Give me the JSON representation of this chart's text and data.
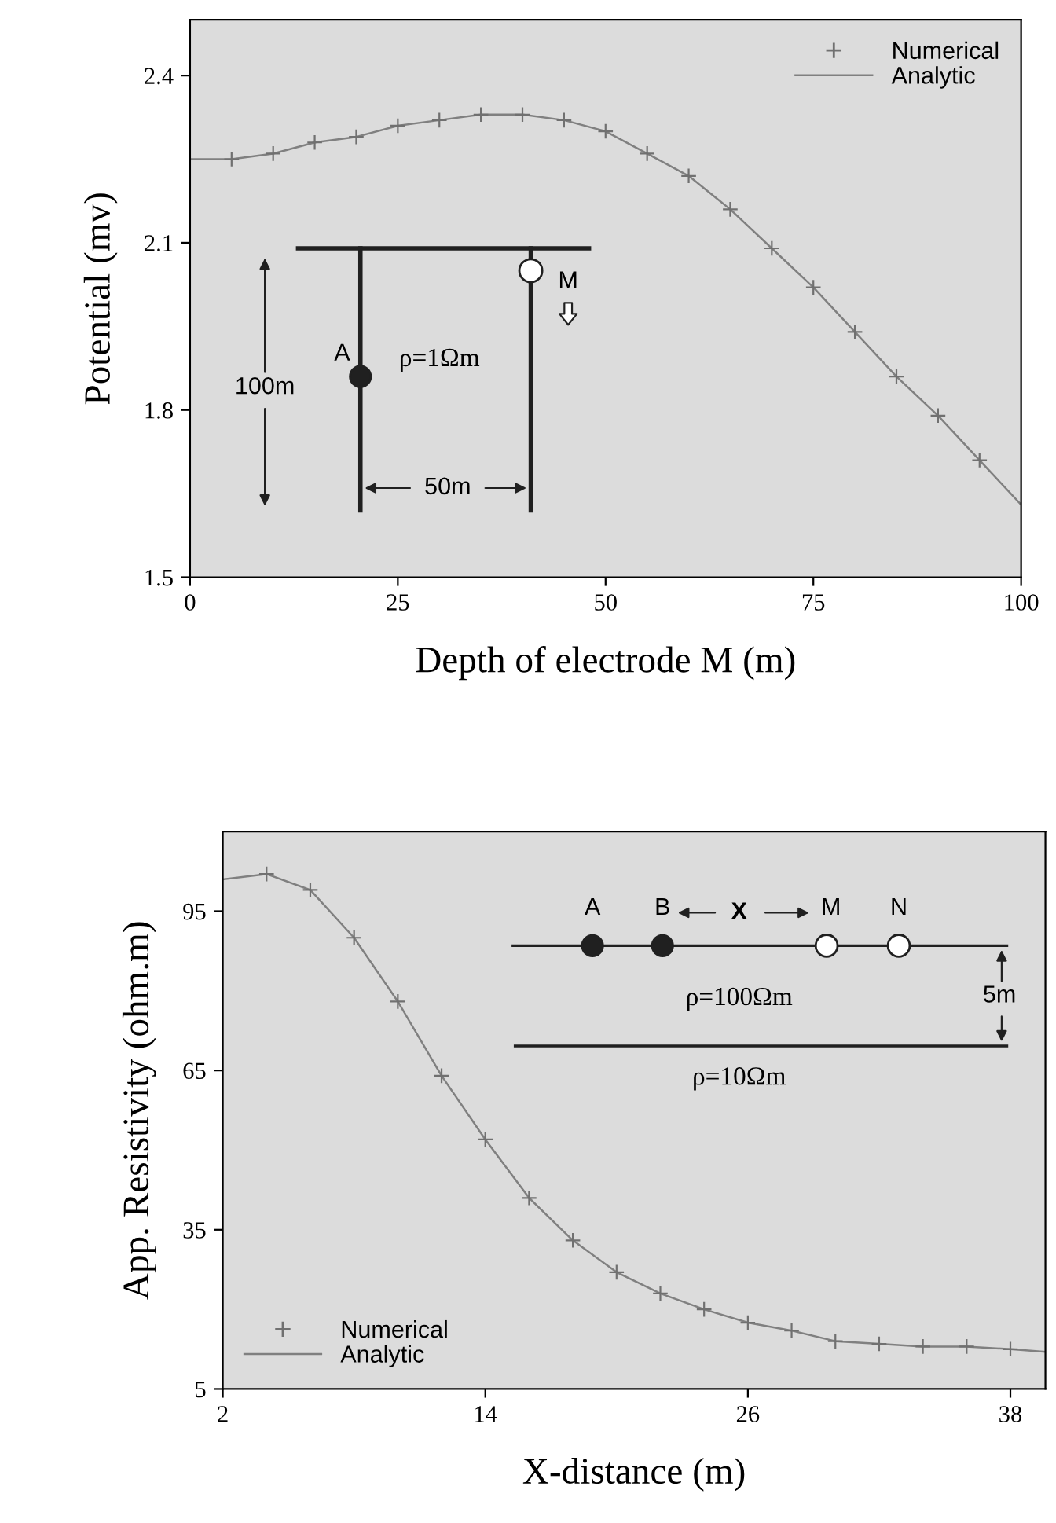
{
  "chart_data": [
    {
      "type": "line",
      "xlabel": "Depth of electrode M (m)",
      "ylabel": "Potential (mv)",
      "xlim": [
        0,
        100
      ],
      "ylim": [
        1.5,
        2.5
      ],
      "xticks": [
        0,
        25,
        50,
        75,
        100
      ],
      "yticks": [
        1.5,
        1.8,
        2.1,
        2.4
      ],
      "grid": false,
      "legend": "top right",
      "series": [
        {
          "name": "Numerical",
          "type": "scatter",
          "marker": "cross",
          "color": "#707070",
          "x": [
            5,
            10,
            15,
            20,
            25,
            30,
            35,
            40,
            45,
            50,
            55,
            60,
            65,
            70,
            75,
            80,
            85,
            90,
            95
          ],
          "values": [
            2.25,
            2.26,
            2.28,
            2.29,
            2.31,
            2.32,
            2.33,
            2.33,
            2.32,
            2.3,
            2.26,
            2.22,
            2.16,
            2.09,
            2.02,
            1.94,
            1.86,
            1.79,
            1.71
          ]
        },
        {
          "name": "Analytic",
          "type": "line",
          "marker": "none",
          "line_style": "solid",
          "color": "#808080",
          "x": [
            0,
            5,
            10,
            15,
            20,
            25,
            30,
            35,
            40,
            45,
            50,
            55,
            60,
            65,
            70,
            75,
            80,
            85,
            90,
            95,
            100
          ],
          "values": [
            2.25,
            2.25,
            2.26,
            2.28,
            2.29,
            2.31,
            2.32,
            2.33,
            2.33,
            2.32,
            2.3,
            2.26,
            2.22,
            2.16,
            2.09,
            2.02,
            1.94,
            1.86,
            1.79,
            1.71,
            1.63
          ]
        }
      ],
      "annotations": [
        "A",
        "M",
        "ρ=1Ωm",
        "100m",
        "50m"
      ]
    },
    {
      "type": "line",
      "xlabel": "X-distance (m)",
      "ylabel": "App. Resistivity (ohm.m)",
      "xlim": [
        2,
        39.6
      ],
      "ylim": [
        5,
        110
      ],
      "xticks": [
        2,
        14,
        26,
        38
      ],
      "yticks": [
        5,
        35,
        65,
        95
      ],
      "grid": false,
      "legend": "bottom left",
      "series": [
        {
          "name": "Numerical",
          "type": "scatter",
          "marker": "cross",
          "color": "#707070",
          "x": [
            4,
            6,
            8,
            10,
            12,
            14,
            16,
            18,
            20,
            22,
            24,
            26,
            28,
            30,
            32,
            34,
            36,
            38
          ],
          "values": [
            102,
            99,
            90,
            78,
            64,
            52,
            41,
            33,
            27,
            23,
            20,
            17.5,
            16,
            14,
            13.5,
            13,
            13,
            12.5
          ]
        },
        {
          "name": "Analytic",
          "type": "line",
          "marker": "none",
          "line_style": "solid",
          "color": "#808080",
          "x": [
            2,
            4,
            6,
            8,
            10,
            12,
            14,
            16,
            18,
            20,
            22,
            24,
            26,
            28,
            30,
            32,
            34,
            36,
            38,
            39.6
          ],
          "values": [
            101,
            102,
            99,
            90,
            78,
            64,
            52,
            41,
            33,
            27,
            23,
            20,
            17.5,
            16,
            14,
            13.5,
            13,
            13,
            12.5,
            12
          ]
        }
      ],
      "annotations": [
        "A",
        "B",
        "X",
        "M",
        "N",
        "ρ=100Ωm",
        "ρ=10Ωm",
        "5m"
      ]
    }
  ]
}
